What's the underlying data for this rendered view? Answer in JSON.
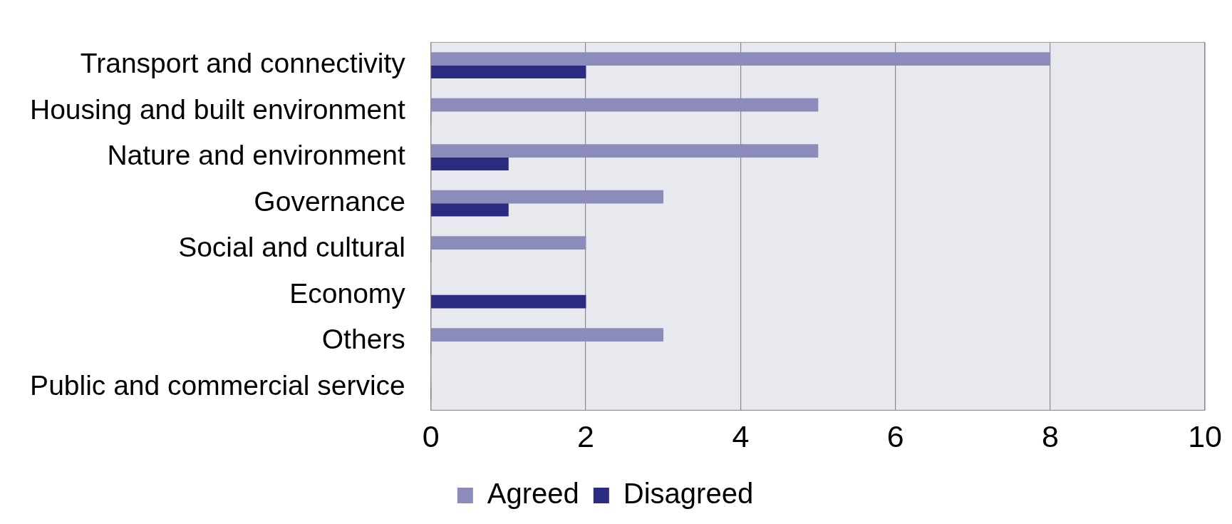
{
  "chart_data": {
    "type": "bar",
    "orientation": "horizontal",
    "categories": [
      "Transport and connectivity",
      "Housing and built environment",
      "Nature and environment",
      "Governance",
      "Social and cultural",
      "Economy",
      "Others",
      "Public and commercial service"
    ],
    "series": [
      {
        "name": "Agreed",
        "color": "#8c8cbc",
        "values": [
          8,
          5,
          5,
          3,
          2,
          0,
          3,
          0
        ]
      },
      {
        "name": "Disagreed",
        "color": "#2b2b82",
        "values": [
          2,
          0,
          1,
          1,
          0,
          2,
          0,
          0
        ]
      }
    ],
    "xlim": [
      0,
      10
    ],
    "xticks": [
      0,
      2,
      4,
      6,
      8,
      10
    ],
    "grid": "x",
    "legend": "bottom"
  }
}
